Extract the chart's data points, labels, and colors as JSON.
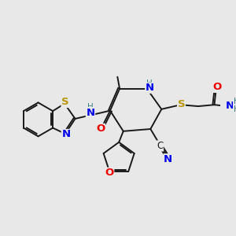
{
  "bg_color": "#e8e8e8",
  "bond_color": "#1a1a1a",
  "bond_width": 1.4,
  "atom_colors": {
    "N": "#0000ee",
    "O": "#ee0000",
    "S": "#b8960a",
    "C": "#1a1a1a",
    "H_label": "#3a8080"
  },
  "font_size": 8.5,
  "fig_size": [
    3.0,
    3.0
  ],
  "dpi": 100
}
